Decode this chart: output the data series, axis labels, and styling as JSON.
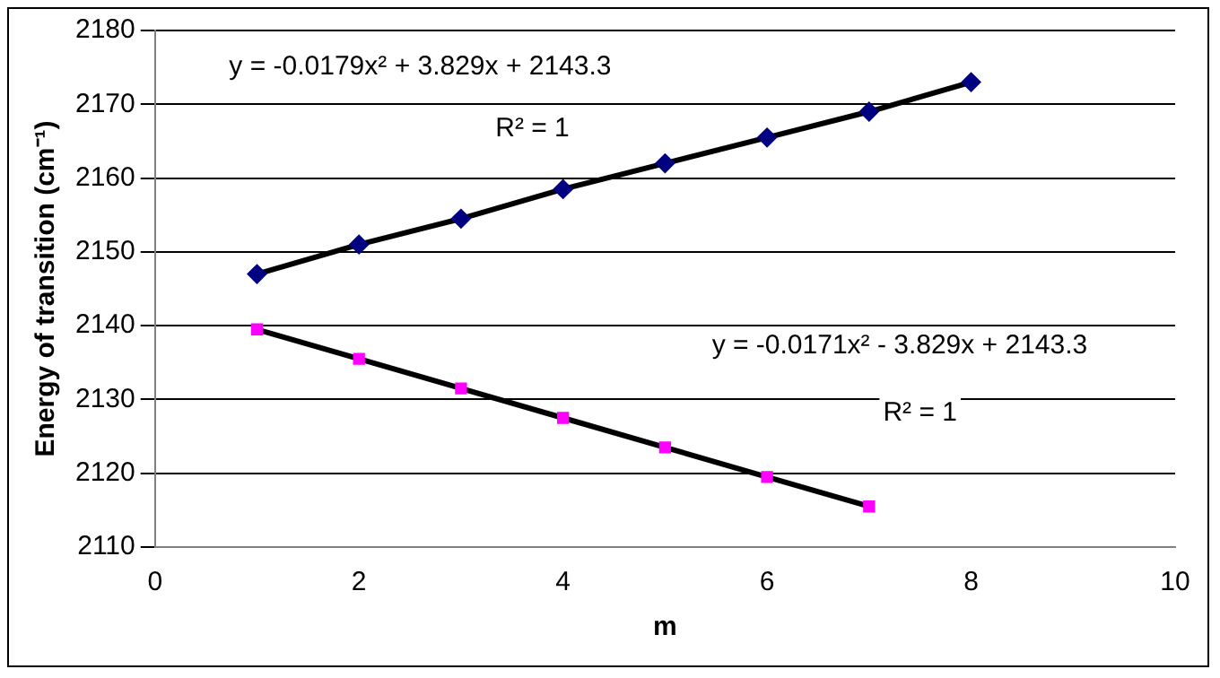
{
  "chart_data": {
    "type": "scatter",
    "xlabel": "m",
    "ylabel": "Energy of transition (cm⁻¹)",
    "xlim": [
      0,
      10
    ],
    "xticks": [
      0,
      2,
      4,
      6,
      8,
      10
    ],
    "ylim": [
      2110,
      2180
    ],
    "yticks": [
      2110,
      2120,
      2130,
      2140,
      2150,
      2160,
      2170,
      2180
    ],
    "grid": "y",
    "legend": false,
    "series": [
      {
        "type": "line",
        "color": "#000000",
        "marker": "none",
        "x": [
          1,
          2,
          3,
          4,
          5,
          6,
          7,
          8
        ],
        "values": [
          2147,
          2151,
          2154.5,
          2158.5,
          2162,
          2165.5,
          2169,
          2173
        ]
      },
      {
        "type": "line",
        "color": "#000000",
        "marker": "none",
        "x": [
          1,
          2,
          3,
          4,
          5,
          6,
          7
        ],
        "values": [
          2139.5,
          2135.5,
          2131.5,
          2127.5,
          2123.5,
          2119.5,
          2115.5
        ]
      },
      {
        "color": "#000080",
        "marker": "diamond",
        "x": [
          1,
          2,
          3,
          4,
          5,
          6,
          7,
          8
        ],
        "values": [
          2147,
          2151,
          2154.5,
          2158.5,
          2162,
          2165.5,
          2169,
          2173
        ]
      },
      {
        "color": "#ff00ff",
        "marker": "square",
        "x": [
          1,
          2,
          3,
          4,
          5,
          6,
          7
        ],
        "values": [
          2139.5,
          2135.5,
          2131.5,
          2127.5,
          2123.5,
          2119.5,
          2115.5
        ]
      }
    ],
    "annotations": [
      "y = -0.0179x² + 3.829x + 2143.3",
      "R² = 1",
      "y = -0.0171x² - 3.829x + 2143.3",
      "R² = 1"
    ]
  }
}
